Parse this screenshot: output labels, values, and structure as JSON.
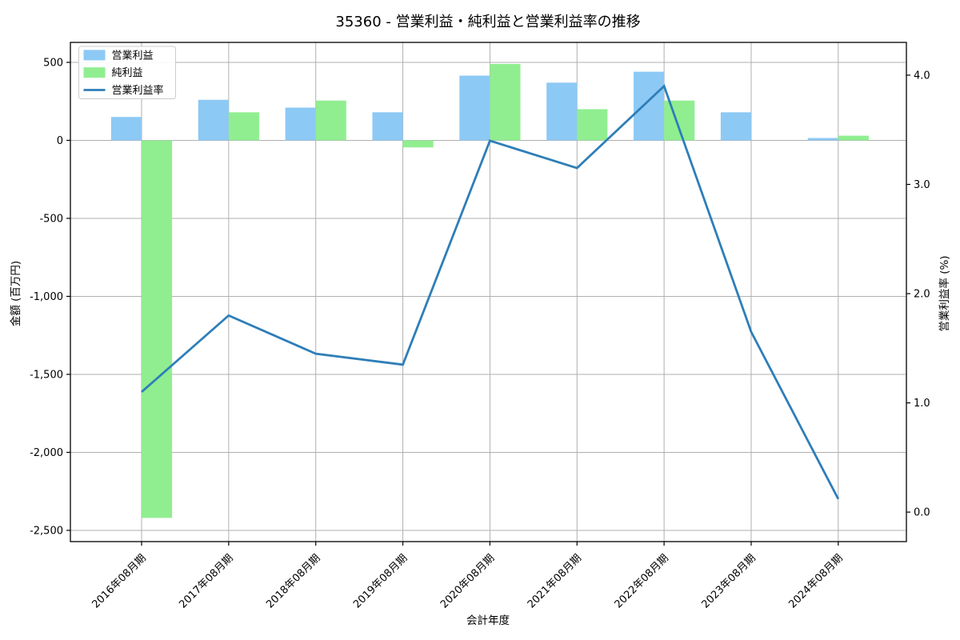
{
  "chart_data": {
    "type": "combo-bar-line",
    "title": "35360 - 営業利益・純利益と営業利益率の推移",
    "xlabel": "会計年度",
    "ylabel_left": "金額 (百万円)",
    "ylabel_right": "営業利益率 (%)",
    "categories": [
      "2016年08月期",
      "2017年08月期",
      "2018年08月期",
      "2019年08月期",
      "2020年08月期",
      "2021年08月期",
      "2022年08月期",
      "2023年08月期",
      "2024年08月期"
    ],
    "series": [
      {
        "name": "営業利益",
        "type": "bar",
        "axis": "left",
        "color": "#8dc9f5",
        "values": [
          150,
          260,
          210,
          180,
          415,
          370,
          440,
          180,
          15
        ]
      },
      {
        "name": "純利益",
        "type": "bar",
        "axis": "left",
        "color": "#90ee90",
        "values": [
          -2420,
          180,
          255,
          -45,
          490,
          200,
          255,
          0,
          30
        ]
      },
      {
        "name": "営業利益率",
        "type": "line",
        "axis": "right",
        "color": "#2e7eb8",
        "values": [
          1.1,
          1.8,
          1.45,
          1.35,
          3.4,
          3.15,
          3.9,
          1.65,
          0.12
        ]
      }
    ],
    "yticks_left": {
      "values": [
        500,
        0,
        -500,
        -1000,
        -1500,
        -2000,
        -2500
      ],
      "labels": [
        "500",
        "0",
        "-500",
        "-1,000",
        "-1,500",
        "-2,000",
        "-2,500"
      ]
    },
    "yticks_right": {
      "values": [
        0.0,
        1.0,
        2.0,
        3.0,
        4.0
      ],
      "labels": [
        "0.0",
        "1.0",
        "2.0",
        "3.0",
        "4.0"
      ]
    },
    "ylim_left": [
      -2572,
      628
    ],
    "ylim_right": [
      -0.27,
      4.3
    ],
    "xlim": [
      -0.8175,
      8.7825
    ],
    "bar_width": 0.35,
    "grid": true,
    "legend_position": "upper-left",
    "colors": {
      "grid": "#b0b0b0",
      "spine": "#000000",
      "tick": "#000000",
      "legend_border": "#cccccc",
      "legend_background": "#ffffff",
      "background": "#ffffff"
    }
  }
}
